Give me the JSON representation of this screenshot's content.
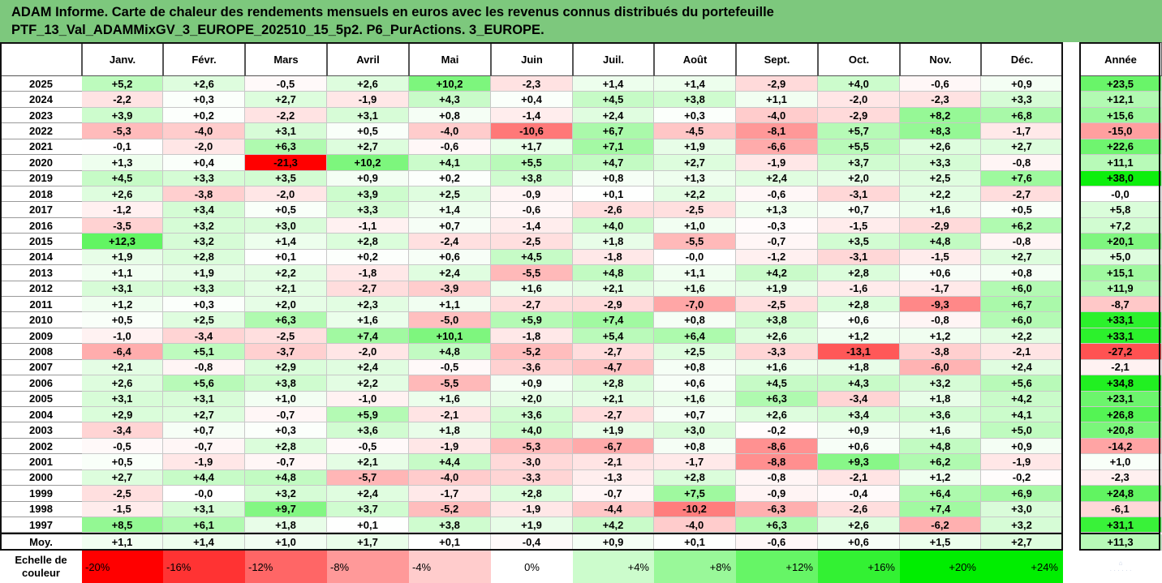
{
  "title_lines": [
    "ADAM Informe. Carte de chaleur des rendements mensuels en euros avec les revenus connus distribués du portefeuille",
    "PTF_13_Val_ADAMMixGV_3_EUROPE_202510_15_5p2. P6_PurActions. 3_EUROPE."
  ],
  "chart_data": {
    "type": "heatmap",
    "columns": [
      "Janv.",
      "Févr.",
      "Mars",
      "Avril",
      "Mai",
      "Juin",
      "Juil.",
      "Août",
      "Sept.",
      "Oct.",
      "Nov.",
      "Déc."
    ],
    "year_column": "Année",
    "rows": [
      {
        "label": "2025",
        "values": [
          "+5,2",
          "+2,6",
          "-0,5",
          "+2,6",
          "+10,2",
          "-2,3",
          "+1,4",
          "+1,4",
          "-2,9",
          "+4,0",
          "-0,6",
          "+0,9"
        ],
        "year": "+23,5"
      },
      {
        "label": "2024",
        "values": [
          "-2,2",
          "+0,3",
          "+2,7",
          "-1,9",
          "+4,3",
          "+0,4",
          "+4,5",
          "+3,8",
          "+1,1",
          "-2,0",
          "-2,3",
          "+3,3"
        ],
        "year": "+12,1"
      },
      {
        "label": "2023",
        "values": [
          "+3,9",
          "+0,2",
          "-2,2",
          "+3,1",
          "+0,8",
          "-1,4",
          "+2,4",
          "+0,3",
          "-4,0",
          "-2,9",
          "+8,2",
          "+6,8"
        ],
        "year": "+15,6"
      },
      {
        "label": "2022",
        "values": [
          "-5,3",
          "-4,0",
          "+3,1",
          "+0,5",
          "-4,0",
          "-10,6",
          "+6,7",
          "-4,5",
          "-8,1",
          "+5,7",
          "+8,3",
          "-1,7"
        ],
        "year": "-15,0"
      },
      {
        "label": "2021",
        "values": [
          "-0,1",
          "-2,0",
          "+6,3",
          "+2,7",
          "-0,6",
          "+1,7",
          "+7,1",
          "+1,9",
          "-6,6",
          "+5,5",
          "+2,6",
          "+2,7"
        ],
        "year": "+22,6"
      },
      {
        "label": "2020",
        "values": [
          "+1,3",
          "+0,4",
          "-21,3",
          "+10,2",
          "+4,1",
          "+5,5",
          "+4,7",
          "+2,7",
          "-1,9",
          "+3,7",
          "+3,3",
          "-0,8"
        ],
        "year": "+11,1"
      },
      {
        "label": "2019",
        "values": [
          "+4,5",
          "+3,3",
          "+3,5",
          "+0,9",
          "+0,2",
          "+3,8",
          "+0,8",
          "+1,3",
          "+2,4",
          "+2,0",
          "+2,5",
          "+7,6"
        ],
        "year": "+38,0"
      },
      {
        "label": "2018",
        "values": [
          "+2,6",
          "-3,8",
          "-2,0",
          "+3,9",
          "+2,5",
          "-0,9",
          "+0,1",
          "+2,2",
          "-0,6",
          "-3,1",
          "+2,2",
          "-2,7"
        ],
        "year": "-0,0"
      },
      {
        "label": "2017",
        "values": [
          "-1,2",
          "+3,4",
          "+0,5",
          "+3,3",
          "+1,4",
          "-0,6",
          "-2,6",
          "-2,5",
          "+1,3",
          "+0,7",
          "+1,6",
          "+0,5"
        ],
        "year": "+5,8"
      },
      {
        "label": "2016",
        "values": [
          "-3,5",
          "+3,2",
          "+3,0",
          "-1,1",
          "+0,7",
          "-1,4",
          "+4,0",
          "+1,0",
          "-0,3",
          "-1,5",
          "-2,9",
          "+6,2"
        ],
        "year": "+7,2"
      },
      {
        "label": "2015",
        "values": [
          "+12,3",
          "+3,2",
          "+1,4",
          "+2,8",
          "-2,4",
          "-2,5",
          "+1,8",
          "-5,5",
          "-0,7",
          "+3,5",
          "+4,8",
          "-0,8"
        ],
        "year": "+20,1"
      },
      {
        "label": "2014",
        "values": [
          "+1,9",
          "+2,8",
          "+0,1",
          "+0,2",
          "+0,6",
          "+4,5",
          "-1,8",
          "-0,0",
          "-1,2",
          "-3,1",
          "-1,5",
          "+2,7"
        ],
        "year": "+5,0"
      },
      {
        "label": "2013",
        "values": [
          "+1,1",
          "+1,9",
          "+2,2",
          "-1,8",
          "+2,4",
          "-5,5",
          "+4,8",
          "+1,1",
          "+4,2",
          "+2,8",
          "+0,6",
          "+0,8"
        ],
        "year": "+15,1"
      },
      {
        "label": "2012",
        "values": [
          "+3,1",
          "+3,3",
          "+2,1",
          "-2,7",
          "-3,9",
          "+1,6",
          "+2,1",
          "+1,6",
          "+1,9",
          "-1,6",
          "-1,7",
          "+6,0"
        ],
        "year": "+11,9"
      },
      {
        "label": "2011",
        "values": [
          "+1,2",
          "+0,3",
          "+2,0",
          "+2,3",
          "+1,1",
          "-2,7",
          "-2,9",
          "-7,0",
          "-2,5",
          "+2,8",
          "-9,3",
          "+6,7"
        ],
        "year": "-8,7"
      },
      {
        "label": "2010",
        "values": [
          "+0,5",
          "+2,5",
          "+6,3",
          "+1,6",
          "-5,0",
          "+5,9",
          "+7,4",
          "+0,8",
          "+3,8",
          "+0,6",
          "-0,8",
          "+6,0"
        ],
        "year": "+33,1"
      },
      {
        "label": "2009",
        "values": [
          "-1,0",
          "-3,4",
          "-2,5",
          "+7,4",
          "+10,1",
          "-1,8",
          "+5,4",
          "+6,4",
          "+2,6",
          "+1,2",
          "+1,2",
          "+2,2"
        ],
        "year": "+33,1"
      },
      {
        "label": "2008",
        "values": [
          "-6,4",
          "+5,1",
          "-3,7",
          "-2,0",
          "+4,8",
          "-5,2",
          "-2,7",
          "+2,5",
          "-3,3",
          "-13,1",
          "-3,8",
          "-2,1"
        ],
        "year": "-27,2"
      },
      {
        "label": "2007",
        "values": [
          "+2,1",
          "-0,8",
          "+2,9",
          "+2,4",
          "-0,5",
          "-3,6",
          "-4,7",
          "+0,8",
          "+1,6",
          "+1,8",
          "-6,0",
          "+2,4"
        ],
        "year": "-2,1"
      },
      {
        "label": "2006",
        "values": [
          "+2,6",
          "+5,6",
          "+3,8",
          "+2,2",
          "-5,5",
          "+0,9",
          "+2,8",
          "+0,6",
          "+4,5",
          "+4,3",
          "+3,2",
          "+5,6"
        ],
        "year": "+34,8"
      },
      {
        "label": "2005",
        "values": [
          "+3,1",
          "+3,1",
          "+1,0",
          "-1,0",
          "+1,6",
          "+2,0",
          "+2,1",
          "+1,6",
          "+6,3",
          "-3,4",
          "+1,8",
          "+4,2"
        ],
        "year": "+23,1"
      },
      {
        "label": "2004",
        "values": [
          "+2,9",
          "+2,7",
          "-0,7",
          "+5,9",
          "-2,1",
          "+3,6",
          "-2,7",
          "+0,7",
          "+2,6",
          "+3,4",
          "+3,6",
          "+4,1"
        ],
        "year": "+26,8"
      },
      {
        "label": "2003",
        "values": [
          "-3,4",
          "+0,7",
          "+0,3",
          "+3,6",
          "+1,8",
          "+4,0",
          "+1,9",
          "+3,0",
          "-0,2",
          "+0,9",
          "+1,6",
          "+5,0"
        ],
        "year": "+20,8"
      },
      {
        "label": "2002",
        "values": [
          "-0,5",
          "-0,7",
          "+2,8",
          "-0,5",
          "-1,9",
          "-5,3",
          "-6,7",
          "+0,8",
          "-8,6",
          "+0,6",
          "+4,8",
          "+0,9"
        ],
        "year": "-14,2"
      },
      {
        "label": "2001",
        "values": [
          "+0,5",
          "-1,9",
          "-0,7",
          "+2,1",
          "+4,4",
          "-3,0",
          "-2,1",
          "-1,7",
          "-8,8",
          "+9,3",
          "+6,2",
          "-1,9"
        ],
        "year": "+1,0"
      },
      {
        "label": "2000",
        "values": [
          "+2,7",
          "+4,4",
          "+4,8",
          "-5,7",
          "-4,0",
          "-3,3",
          "-1,3",
          "+2,8",
          "-0,8",
          "-2,1",
          "+1,2",
          "-0,2"
        ],
        "year": "-2,3"
      },
      {
        "label": "1999",
        "values": [
          "-2,5",
          "-0,0",
          "+3,2",
          "+2,4",
          "-1,7",
          "+2,8",
          "-0,7",
          "+7,5",
          "-0,9",
          "-0,4",
          "+6,4",
          "+6,9"
        ],
        "year": "+24,8"
      },
      {
        "label": "1998",
        "values": [
          "-1,5",
          "+3,1",
          "+9,7",
          "+3,7",
          "-5,2",
          "-1,9",
          "-4,4",
          "-10,2",
          "-6,3",
          "-2,6",
          "+7,4",
          "+3,0"
        ],
        "year": "-6,1"
      },
      {
        "label": "1997",
        "values": [
          "+8,5",
          "+6,1",
          "+1,8",
          "+0,1",
          "+3,8",
          "+1,9",
          "+4,2",
          "-4,0",
          "+6,3",
          "+2,6",
          "-6,2",
          "+3,2"
        ],
        "year": "+31,1"
      }
    ],
    "average": {
      "label": "Moy.",
      "values": [
        "+1,1",
        "+1,4",
        "+1,0",
        "+1,7",
        "+0,1",
        "-0,4",
        "+0,9",
        "+0,1",
        "-0,6",
        "+0,6",
        "+1,5",
        "+2,7"
      ],
      "year": "+11,3"
    },
    "scale": {
      "label_line1": "Echelle de",
      "label_line2": "couleur",
      "labels": [
        "-20%",
        "-16%",
        "-12%",
        "-8%",
        "-4%",
        "0%",
        "+4%",
        "+8%",
        "+12%",
        "+16%",
        "+20%",
        "+24%"
      ],
      "values": [
        -20,
        -16,
        -12,
        -8,
        -4,
        0,
        4,
        8,
        12,
        16,
        20,
        24
      ]
    },
    "colors": {
      "negative_max": "#ff0000",
      "positive_max": "#00ee00",
      "neutral": "#ffffff",
      "title_bg": "#7dc87d"
    }
  }
}
